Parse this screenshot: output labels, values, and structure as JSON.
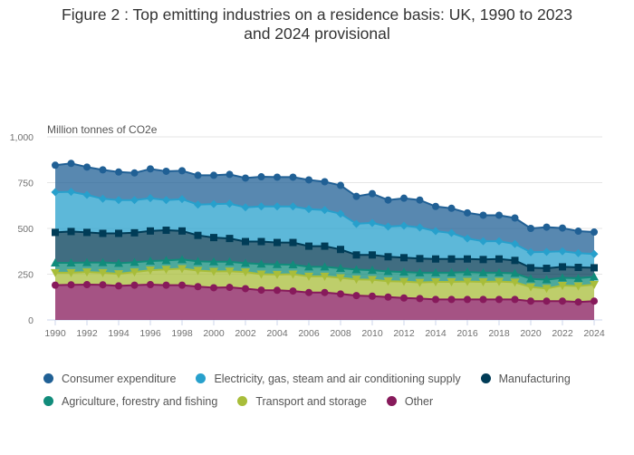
{
  "title_lines": [
    "Figure 2 : Top emitting industries on a residence basis: UK, 1990 to 2023",
    "and 2024 provisional"
  ],
  "chart_data": {
    "type": "area",
    "stacked": true,
    "title": "Figure 2 : Top emitting industries on a residence basis: UK, 1990 to 2023 and 2024 provisional",
    "xlabel": "",
    "ylabel": "Million tonnes of CO2e",
    "ylim": [
      0,
      1000
    ],
    "yticks": [
      0,
      250,
      500,
      750,
      1000
    ],
    "ytick_labels": [
      "0",
      "250",
      "500",
      "750",
      "1,000"
    ],
    "xtick_labels": [
      "1990",
      "1992",
      "1994",
      "1996",
      "1998",
      "2000",
      "2002",
      "2004",
      "2006",
      "2008",
      "2010",
      "2012",
      "2014",
      "2016",
      "2018",
      "2020",
      "2022",
      "2024"
    ],
    "grid": true,
    "legend_position": "bottom",
    "x": [
      1990,
      1991,
      1992,
      1993,
      1994,
      1995,
      1996,
      1997,
      1998,
      1999,
      2000,
      2001,
      2002,
      2003,
      2004,
      2005,
      2006,
      2007,
      2008,
      2009,
      2010,
      2011,
      2012,
      2013,
      2014,
      2015,
      2016,
      2017,
      2018,
      2019,
      2020,
      2021,
      2022,
      2023,
      2024
    ],
    "series": [
      {
        "name": "Other",
        "color": "#871A5B",
        "marker": "circle",
        "values": [
          190,
          192,
          193,
          192,
          186,
          190,
          193,
          190,
          190,
          182,
          176,
          178,
          171,
          163,
          162,
          158,
          150,
          150,
          142,
          133,
          130,
          125,
          120,
          117,
          112,
          112,
          112,
          112,
          112,
          112,
          103,
          103,
          103,
          98,
          103
        ]
      },
      {
        "name": "Transport and storage",
        "color": "#A8BD3A",
        "marker": "triangle-down",
        "values": [
          68,
          66,
          69,
          66,
          66,
          72,
          79,
          86,
          90,
          88,
          89,
          88,
          91,
          87,
          86,
          92,
          88,
          88,
          88,
          89,
          90,
          87,
          90,
          88,
          96,
          96,
          98,
          96,
          98,
          94,
          77,
          69,
          85,
          87,
          90
        ]
      },
      {
        "name": "Agriculture, forestry and fishing",
        "color": "#118C7B",
        "marker": "triangle-up",
        "values": [
          54,
          54,
          52,
          56,
          58,
          53,
          50,
          49,
          50,
          50,
          53,
          52,
          48,
          56,
          55,
          52,
          52,
          52,
          52,
          53,
          52,
          53,
          52,
          53,
          50,
          50,
          52,
          50,
          48,
          49,
          45,
          48,
          42,
          43,
          42
        ]
      },
      {
        "name": "Manufacturing",
        "color": "#003C57",
        "marker": "square",
        "values": [
          166,
          171,
          164,
          159,
          163,
          161,
          164,
          165,
          156,
          142,
          132,
          127,
          118,
          122,
          120,
          121,
          113,
          113,
          103,
          80,
          83,
          80,
          78,
          77,
          75,
          75,
          71,
          72,
          75,
          70,
          60,
          62,
          60,
          59,
          50
        ]
      },
      {
        "name": "Electricity, gas, steam and air conditioning supply",
        "color": "#27A0CC",
        "marker": "diamond",
        "values": [
          220,
          217,
          205,
          189,
          182,
          179,
          179,
          165,
          174,
          168,
          183,
          190,
          187,
          192,
          197,
          197,
          202,
          197,
          195,
          170,
          175,
          165,
          175,
          170,
          152,
          142,
          112,
          100,
          97,
          90,
          85,
          90,
          85,
          78,
          75
        ]
      },
      {
        "name": "Consumer expenditure",
        "color": "#206095",
        "marker": "circle",
        "values": [
          147,
          155,
          152,
          158,
          153,
          148,
          160,
          157,
          155,
          160,
          157,
          160,
          160,
          162,
          160,
          160,
          160,
          155,
          155,
          150,
          160,
          145,
          150,
          150,
          135,
          135,
          140,
          142,
          142,
          142,
          130,
          135,
          127,
          120,
          120
        ]
      }
    ]
  },
  "legend": {
    "rows": [
      [
        {
          "label": "Consumer expenditure",
          "color": "#206095"
        },
        {
          "label": "Electricity, gas, steam and air conditioning supply",
          "color": "#27A0CC"
        },
        {
          "label": "Manufacturing",
          "color": "#003C57"
        }
      ],
      [
        {
          "label": "Agriculture, forestry and fishing",
          "color": "#118C7B"
        },
        {
          "label": "Transport and storage",
          "color": "#A8BD3A"
        },
        {
          "label": "Other",
          "color": "#871A5B"
        }
      ]
    ]
  }
}
